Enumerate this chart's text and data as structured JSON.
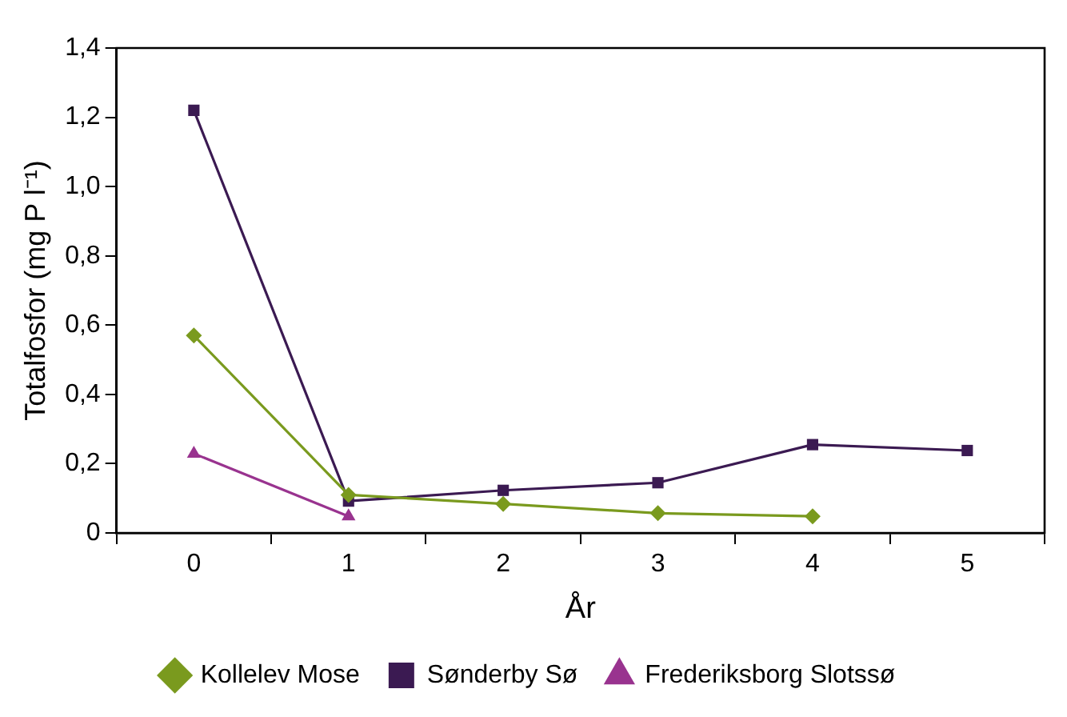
{
  "chart_data": {
    "type": "line",
    "xlabel": "År",
    "ylabel": "Totalfosfor (mg P l⁻¹)",
    "categories": [
      "0",
      "1",
      "2",
      "3",
      "4",
      "5"
    ],
    "series": [
      {
        "name": "Kollelev Mose",
        "color": "#7a9a1e",
        "marker": "diamond",
        "values": [
          0.57,
          0.11,
          0.084,
          0.057,
          0.048,
          null
        ]
      },
      {
        "name": "Sønderby Sø",
        "color": "#3b1a52",
        "marker": "square",
        "values": [
          1.22,
          0.092,
          0.123,
          0.145,
          0.255,
          0.238
        ]
      },
      {
        "name": "Frederiksborg Slotssø",
        "color": "#99338f",
        "marker": "triangle",
        "values": [
          0.229,
          0.048,
          null,
          null,
          null,
          null
        ]
      }
    ],
    "ylim": [
      0,
      1.4
    ],
    "yticks": [
      0,
      {
        "value": 0.2,
        "label": "0,2"
      },
      {
        "value": 0.4,
        "label": "0,4"
      },
      {
        "value": 0.6,
        "label": "0,6"
      },
      {
        "value": 0.8,
        "label": "0,8"
      },
      {
        "value": 1.0,
        "label": "1,0"
      },
      {
        "value": 1.2,
        "label": "1,2"
      },
      {
        "value": 1.4,
        "label": "1,4"
      }
    ],
    "grid": false,
    "legend": "bottom",
    "line_style": "solid"
  }
}
